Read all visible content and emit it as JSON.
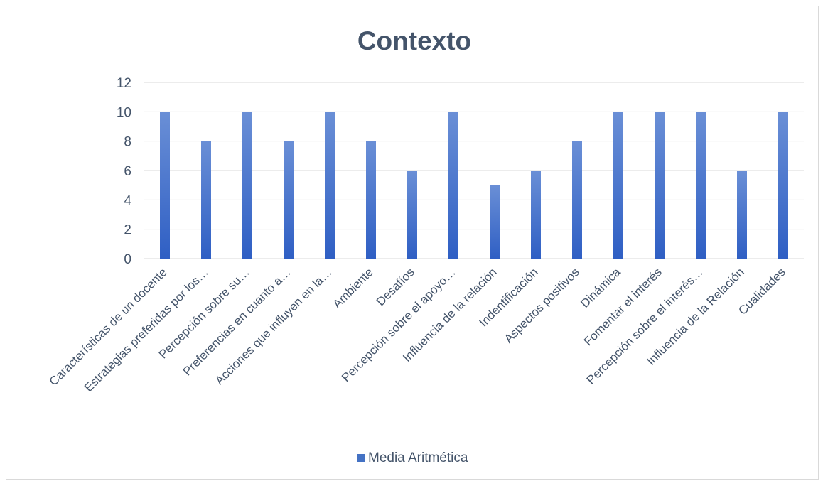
{
  "chart_data": {
    "type": "bar",
    "title": "Contexto",
    "categories": [
      "Características de un docente",
      "Estrategias preferidas por los…",
      "Percepción sobre su…",
      "Preferencias en cuanto a…",
      "Acciones que influyen en la…",
      "Ambiente",
      "Desafíos",
      "Percepción sobre el apoyo…",
      "Influencia de la relación",
      "Indentificación",
      "Aspectos positivos",
      "Dinámica",
      "Fomentar el interés",
      "Percepción sobre el interés…",
      "Influencia de la Relación",
      "Cualidades"
    ],
    "series": [
      {
        "name": "Media Aritmética",
        "values": [
          10,
          8,
          10,
          8,
          10,
          8,
          6,
          10,
          5,
          6,
          8,
          10,
          10,
          10,
          6,
          10
        ]
      }
    ],
    "ylim": [
      0,
      12
    ],
    "yticks": [
      "0",
      "2",
      "4",
      "6",
      "8",
      "10",
      "12"
    ],
    "grid": true,
    "legend_position": "bottom",
    "colors": {
      "bar_top": "#6a8fd6",
      "bar_bottom": "#2f5fc4",
      "text": "#44546a",
      "grid": "#d9d9d9"
    }
  }
}
